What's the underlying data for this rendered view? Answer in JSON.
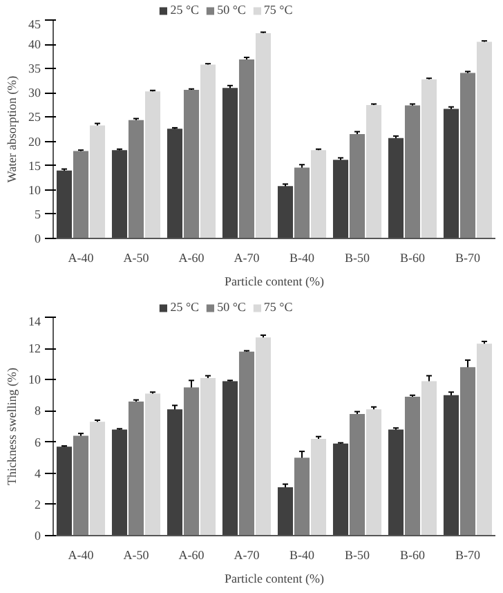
{
  "chart_data": [
    {
      "type": "bar",
      "xlabel": "Particle content (%)",
      "ylabel": "Water absorption (%)",
      "categories": [
        "A-40",
        "A-50",
        "A-60",
        "A-70",
        "B-40",
        "B-50",
        "B-60",
        "B-70"
      ],
      "ylim": [
        0,
        45
      ],
      "yticks": [
        0,
        5,
        10,
        15,
        20,
        25,
        30,
        35,
        40,
        45
      ],
      "grid": false,
      "legend": "top",
      "series": [
        {
          "name": "25 °C",
          "color": "#404040",
          "values": [
            14.0,
            18.2,
            22.6,
            31.0,
            10.8,
            16.2,
            20.7,
            26.7
          ],
          "errors": [
            0.3,
            0.2,
            0.2,
            0.5,
            0.4,
            0.4,
            0.4,
            0.4
          ]
        },
        {
          "name": "50 °C",
          "color": "#808080",
          "values": [
            18.0,
            24.4,
            30.6,
            36.9,
            14.6,
            21.5,
            27.4,
            34.1
          ],
          "errors": [
            0.2,
            0.3,
            0.2,
            0.4,
            0.6,
            0.5,
            0.3,
            0.3
          ]
        },
        {
          "name": "75 °C",
          "color": "#d9d9d9",
          "values": [
            23.3,
            30.3,
            35.8,
            42.3,
            18.2,
            27.5,
            32.8,
            40.5
          ],
          "errors": [
            0.4,
            0.2,
            0.2,
            0.2,
            0.2,
            0.2,
            0.2,
            0.2
          ]
        }
      ]
    },
    {
      "type": "bar",
      "xlabel": "Particle content (%)",
      "ylabel": "Thickness swelling (%)",
      "categories": [
        "A-40",
        "A-50",
        "A-60",
        "A-70",
        "B-40",
        "B-50",
        "B-60",
        "B-70"
      ],
      "ylim": [
        0,
        14
      ],
      "yticks": [
        0,
        2,
        4,
        6,
        8,
        10,
        12,
        14
      ],
      "grid": false,
      "legend": "top",
      "series": [
        {
          "name": "25 °C",
          "color": "#404040",
          "values": [
            5.7,
            6.8,
            8.1,
            9.9,
            3.1,
            5.9,
            6.8,
            9.0
          ],
          "errors": [
            0.05,
            0.05,
            0.25,
            0.05,
            0.2,
            0.05,
            0.1,
            0.2
          ]
        },
        {
          "name": "50 °C",
          "color": "#808080",
          "values": [
            6.4,
            8.6,
            9.5,
            11.8,
            5.0,
            7.8,
            8.9,
            10.8
          ],
          "errors": [
            0.15,
            0.1,
            0.45,
            0.05,
            0.4,
            0.15,
            0.1,
            0.45
          ]
        },
        {
          "name": "75 °C",
          "color": "#d9d9d9",
          "values": [
            7.3,
            9.1,
            10.1,
            12.7,
            6.2,
            8.1,
            9.9,
            12.3
          ],
          "errors": [
            0.1,
            0.1,
            0.15,
            0.15,
            0.15,
            0.15,
            0.35,
            0.15
          ]
        }
      ]
    }
  ]
}
